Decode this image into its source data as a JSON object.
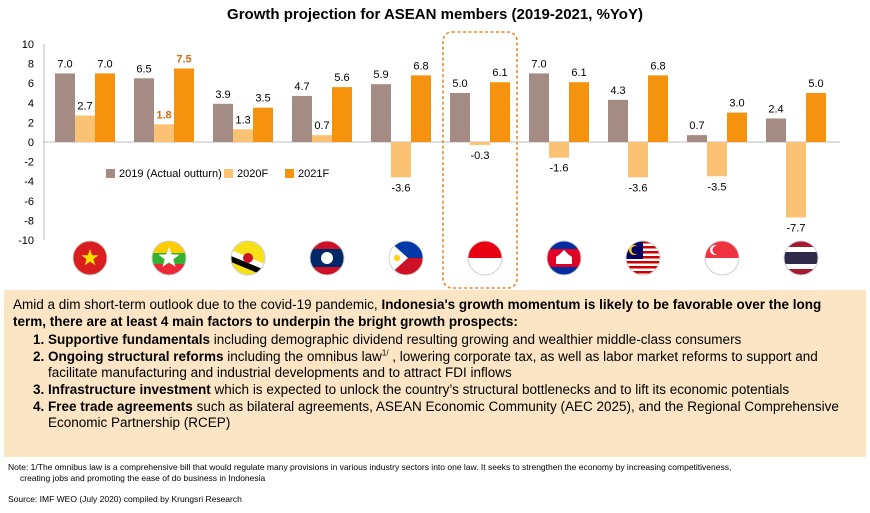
{
  "chart_data": {
    "type": "bar",
    "title": "Growth projection for ASEAN members (2019-2021, %YoY)",
    "countries": [
      "Vietnam",
      "Myanmar",
      "Brunei",
      "Laos",
      "Philippines",
      "Indonesia",
      "Cambodia",
      "Malaysia",
      "Singapore",
      "Thailand"
    ],
    "categories": [
      "",
      "",
      "",
      "",
      "",
      "",
      "",
      "",
      "",
      ""
    ],
    "series": [
      {
        "name": "2019 (Actual outturn)",
        "color": "#a48b83",
        "values": [
          7.0,
          6.5,
          3.9,
          4.7,
          5.9,
          5.0,
          7.0,
          4.3,
          0.7,
          2.4
        ]
      },
      {
        "name": "2020F",
        "color": "#fcc273",
        "values": [
          2.7,
          1.8,
          1.3,
          0.7,
          -3.6,
          -0.3,
          -1.6,
          -3.6,
          -3.5,
          -7.7
        ]
      },
      {
        "name": "2021F",
        "color": "#f5920e",
        "values": [
          7.0,
          7.5,
          3.5,
          5.6,
          6.8,
          6.1,
          6.1,
          6.8,
          3.0,
          5.0
        ]
      }
    ],
    "highlighted_labels": [
      {
        "series": 1,
        "index": 1
      },
      {
        "series": 2,
        "index": 1
      }
    ],
    "highlight_color": "#d86a0b",
    "highlighted_category": "Indonesia",
    "ylim": [
      -10,
      10
    ],
    "yticks": [
      10,
      8,
      6,
      4,
      2,
      0,
      -2,
      -4,
      -6,
      -8,
      -10
    ],
    "grid": false,
    "legend": "inside-left"
  },
  "summary": {
    "intro_plain": "Amid a dim short-term outlook due to the covid-19 pandemic, ",
    "intro_bold": "Indonesia's growth momentum is likely to be favorable over the long term, there are at least 4 main factors to underpin the bright growth prospects:",
    "factors": [
      {
        "bold": "Supportive fundamentals",
        "text": " including demographic dividend resulting growing and wealthier middle-class consumers"
      },
      {
        "bold": "Ongoing structural reforms",
        "text": " including the omnibus law",
        "sup": "1/",
        "text2": " , lowering corporate tax, as well as labor market reforms to support and facilitate manufacturing and industrial developments and to attract FDI inflows"
      },
      {
        "bold": "Infrastructure investment",
        "text": " which is expected to unlock the country’s structural bottlenecks and to lift its economic potentials"
      },
      {
        "bold": "Free trade agreements",
        "text": "  such as bilateral agreements, ASEAN Economic Community (AEC 2025), and the Regional Comprehensive Economic Partnership (RCEP)"
      }
    ]
  },
  "note": {
    "line1": "Note: 1/The omnibus law is a comprehensive bill that would regulate many provisions in various industry sectors into one law. It seeks to strengthen the economy by increasing competitiveness,",
    "line2": "creating jobs and promoting the ease of do business in Indonesia"
  },
  "source": "Source: IMF WEO (July 2020) compiled by Krungsri Research"
}
